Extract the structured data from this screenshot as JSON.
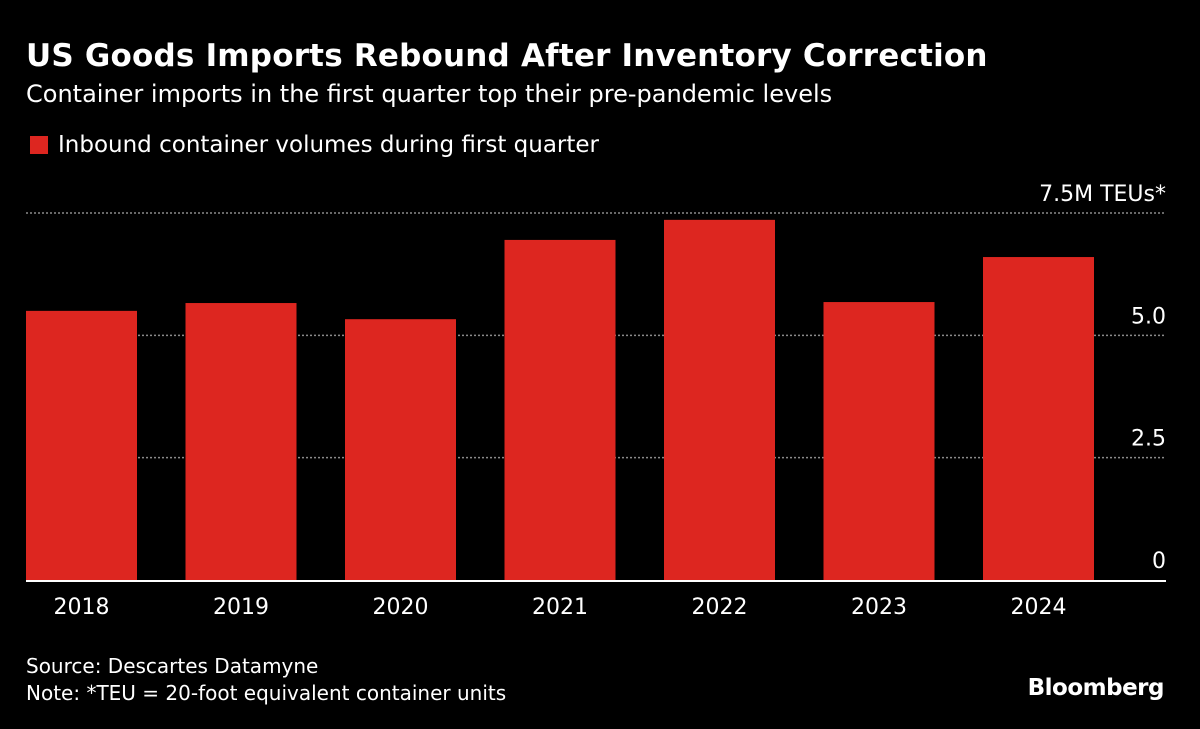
{
  "chart_data": {
    "type": "bar",
    "title": "US Goods Imports Rebound After Inventory Correction",
    "subtitle": "Container imports in the first quarter top their pre-pandemic levels",
    "legend": [
      "Inbound container volumes during first quarter"
    ],
    "categories": [
      "2018",
      "2019",
      "2020",
      "2021",
      "2022",
      "2023",
      "2024"
    ],
    "series": [
      {
        "name": "Inbound container volumes during first quarter",
        "values": [
          5.5,
          5.66,
          5.33,
          6.95,
          7.36,
          5.68,
          6.6
        ]
      }
    ],
    "ylim": [
      0,
      7.5
    ],
    "yticks": [
      0,
      2.5,
      5.0,
      7.5
    ],
    "ytick_labels": [
      "0",
      "2.5",
      "5.0",
      "7.5M TEUs*"
    ],
    "grid": true,
    "legend_placement": "top-left",
    "color": "#dd2620"
  },
  "footer": {
    "source": "Source: Descartes Datamyne",
    "note": "Note: *TEU = 20-foot equivalent container units",
    "logo": "Bloomberg"
  }
}
